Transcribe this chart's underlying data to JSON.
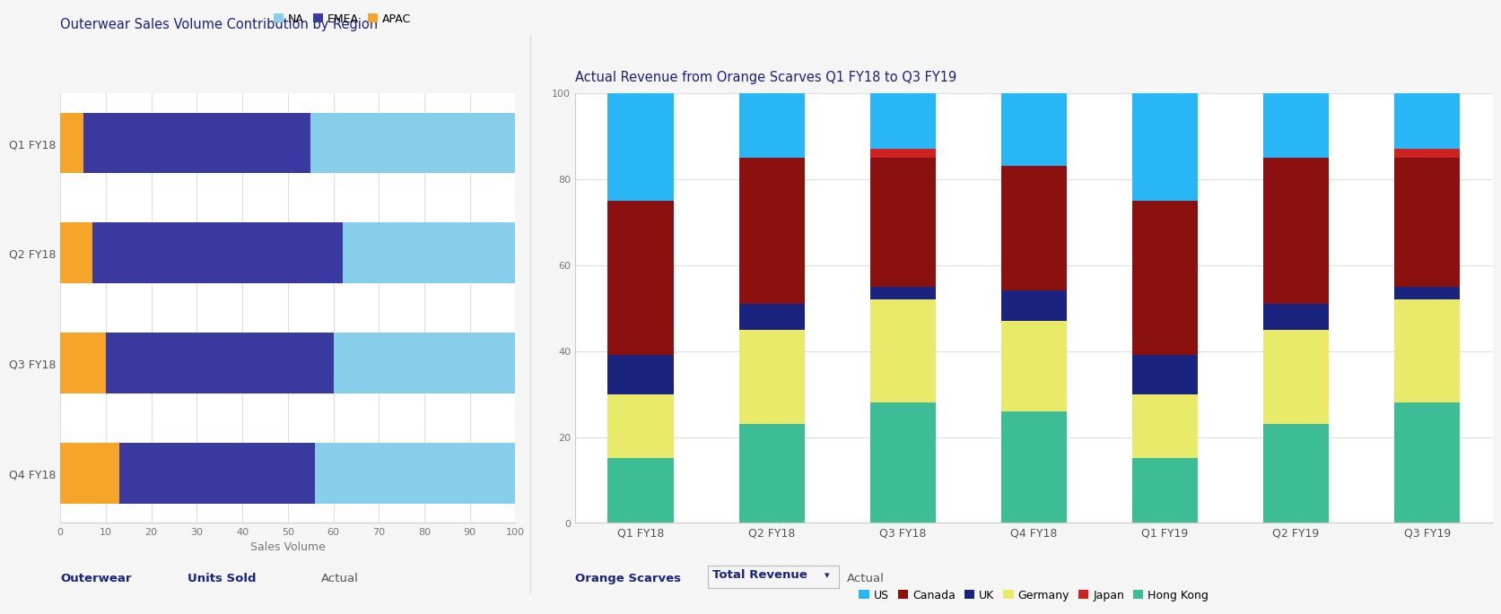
{
  "left_title": "Outerwear Sales Volume Contribution by Region",
  "left_categories": [
    "Q1 FY18",
    "Q2 FY18",
    "Q3 FY18",
    "Q4 FY18"
  ],
  "left_data": {
    "APAC": [
      5,
      7,
      10,
      13
    ],
    "EMEA": [
      50,
      55,
      50,
      43
    ],
    "NA": [
      45,
      38,
      40,
      44
    ]
  },
  "left_colors": {
    "APAC": "#F5A52A",
    "EMEA": "#3939A0",
    "NA": "#87CEEB"
  },
  "left_xlabel": "Sales Volume",
  "left_xlim": [
    0,
    100
  ],
  "left_xticks": [
    0,
    10,
    20,
    30,
    40,
    50,
    60,
    70,
    80,
    90,
    100
  ],
  "left_footer": [
    "Outerwear",
    "Units Sold",
    "Actual"
  ],
  "right_title": "Actual Revenue from Orange Scarves Q1 FY18 to Q3 FY19",
  "right_categories": [
    "Q1 FY18",
    "Q2 FY18",
    "Q3 FY18",
    "Q4 FY18",
    "Q1 FY19",
    "Q2 FY19",
    "Q3 FY19"
  ],
  "right_data": {
    "Hong Kong": [
      15,
      23,
      28,
      26,
      15,
      23,
      28
    ],
    "Germany": [
      15,
      22,
      24,
      21,
      15,
      22,
      24
    ],
    "UK": [
      9,
      6,
      3,
      7,
      9,
      6,
      3
    ],
    "Canada": [
      36,
      34,
      30,
      29,
      36,
      34,
      30
    ],
    "Japan": [
      0,
      0,
      2,
      0,
      0,
      0,
      2
    ],
    "US": [
      25,
      15,
      13,
      17,
      25,
      15,
      13
    ]
  },
  "right_colors": {
    "Hong Kong": "#3DBD95",
    "Germany": "#EAEA6A",
    "UK": "#1A237E",
    "Canada": "#8B1010",
    "Japan": "#CC2222",
    "US": "#29B6F6"
  },
  "right_ylim": [
    0,
    100
  ],
  "right_yticks": [
    0,
    20,
    40,
    60,
    80,
    100
  ],
  "right_footer": [
    "Orange Scarves",
    "Total Revenue",
    "Actual"
  ],
  "bg_color": "#F5F5F5",
  "panel_bg": "#FFFFFF",
  "divider_color": "#E0E0E0"
}
